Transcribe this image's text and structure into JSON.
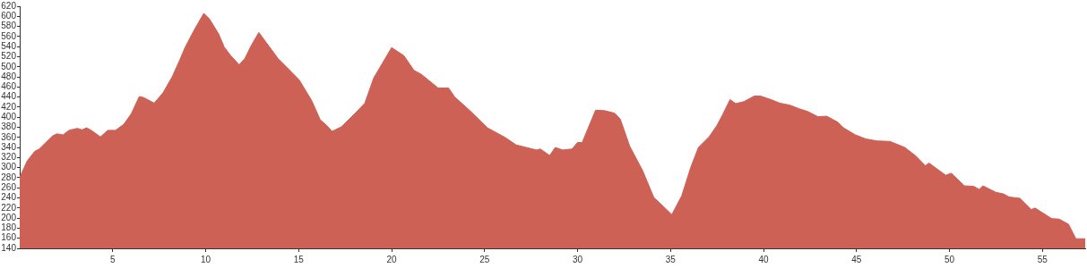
{
  "chart_data": {
    "type": "area",
    "color": "#cd6155",
    "grid": false,
    "legend": false,
    "xlim": [
      0,
      57.3
    ],
    "xticks": [
      5,
      10,
      15,
      20,
      25,
      30,
      35,
      40,
      45,
      50,
      55
    ],
    "ylim": [
      140,
      620
    ],
    "yticks": [
      140,
      160,
      180,
      200,
      220,
      240,
      260,
      280,
      300,
      320,
      340,
      360,
      380,
      400,
      420,
      440,
      460,
      480,
      500,
      520,
      540,
      560,
      580,
      600,
      620
    ],
    "x": [
      0,
      0.4,
      0.8,
      1.05,
      1.77,
      2.0,
      2.33,
      2.65,
      3.1,
      3.35,
      3.6,
      3.85,
      4.34,
      4.74,
      5.15,
      5.6,
      6.0,
      6.43,
      6.67,
      7.23,
      7.7,
      8.2,
      8.6,
      8.9,
      9.4,
      9.9,
      10.2,
      10.7,
      11.0,
      11.33,
      11.8,
      12.1,
      12.45,
      12.86,
      13.26,
      13.9,
      14.55,
      15.03,
      15.7,
      16.16,
      16.5,
      16.8,
      17.3,
      18.1,
      18.56,
      19.04,
      20.0,
      20.66,
      21.2,
      21.6,
      22.5,
      23.06,
      23.4,
      24.27,
      25.15,
      26.1,
      26.7,
      27.8,
      28.0,
      28.5,
      28.8,
      29.2,
      29.7,
      30.0,
      30.25,
      30.97,
      31.45,
      32.0,
      32.3,
      32.8,
      33.5,
      34.1,
      35.07,
      35.6,
      36.1,
      36.5,
      37.07,
      37.5,
      37.8,
      38.2,
      38.5,
      38.95,
      39.5,
      39.84,
      40.47,
      40.87,
      41.42,
      41.9,
      42.4,
      42.93,
      43.4,
      44.0,
      44.3,
      44.94,
      45.5,
      46.1,
      46.8,
      47.6,
      48.2,
      48.7,
      48.9,
      49.8,
      50.1,
      50.8,
      51.3,
      51.6,
      51.8,
      52.5,
      52.9,
      53.2,
      53.8,
      54.4,
      54.6,
      55.5,
      55.9,
      56.4,
      56.8,
      57.3
    ],
    "values": [
      281,
      313,
      332,
      337,
      363,
      367,
      365,
      374,
      378,
      375,
      379,
      374,
      361,
      374,
      374,
      386,
      407,
      441,
      439,
      428,
      448,
      480,
      513,
      539,
      574,
      606,
      595,
      565,
      539,
      523,
      504,
      516,
      542,
      568,
      548,
      516,
      492,
      474,
      433,
      395,
      384,
      372,
      381,
      410,
      428,
      478,
      538,
      522,
      493,
      485,
      458,
      458,
      440,
      411,
      379,
      360,
      345,
      335,
      337,
      324,
      340,
      335,
      337,
      350,
      350,
      414,
      413,
      408,
      396,
      343,
      294,
      241,
      207,
      244,
      302,
      340,
      361,
      384,
      405,
      435,
      427,
      431,
      442,
      442,
      434,
      428,
      424,
      417,
      411,
      401,
      402,
      390,
      379,
      365,
      357,
      353,
      352,
      340,
      323,
      304,
      309,
      285,
      289,
      264,
      263,
      257,
      264,
      251,
      248,
      242,
      239,
      217,
      220,
      199,
      198,
      188,
      159,
      159
    ]
  }
}
